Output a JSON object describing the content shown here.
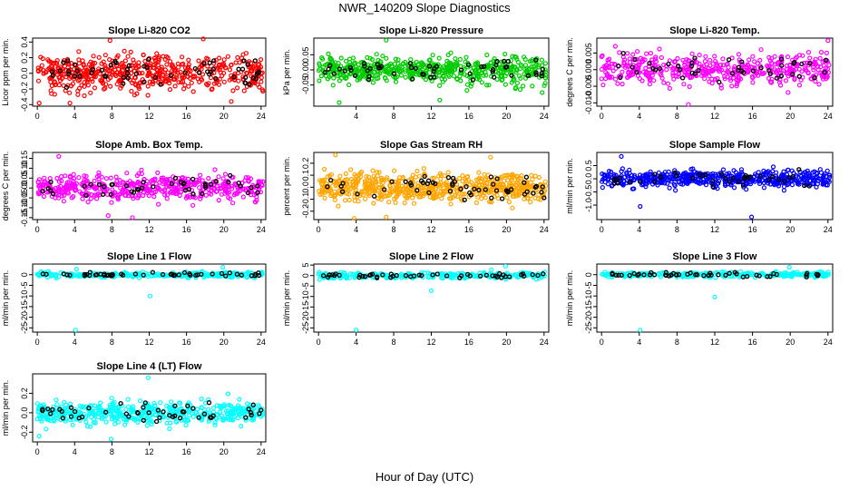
{
  "page": {
    "title": "NWR_140209  Slope Diagnostics",
    "xlabel": "Hour of Day (UTC)"
  },
  "colors": {
    "highlight": "#000000"
  },
  "chart_data": [
    {
      "type": "scatter",
      "title": "Slope Li-820 CO2",
      "ylabel": "Licor ppm per min.",
      "color": "#ff0000",
      "xlim": [
        -0.5,
        24.5
      ],
      "ylim": [
        -0.42,
        0.45
      ],
      "xticks": [
        0,
        4,
        8,
        12,
        16,
        20,
        24
      ],
      "xtick_labels": [
        "0",
        "4",
        "8",
        "12",
        "16",
        "20",
        "24"
      ],
      "yticks": [
        -0.4,
        -0.2,
        0.0,
        0.2,
        0.4
      ],
      "ytick_labels": [
        "-0.4",
        "-0.2",
        "0.0",
        "0.2",
        "0.4"
      ],
      "spread": 0.16,
      "cap": 0.38,
      "count": 520,
      "highlight_count": 60,
      "outliers": [
        [
          7.8,
          0.42
        ],
        [
          17.8,
          0.44
        ],
        [
          3.5,
          -0.38
        ],
        [
          20.8,
          -0.36
        ],
        [
          0.2,
          -0.38
        ]
      ]
    },
    {
      "type": "scatter",
      "title": "Slope Li-820 Pressure",
      "ylabel": "kPa per min.",
      "color": "#00cc00",
      "xlim": [
        -0.5,
        24.5
      ],
      "ylim": [
        -0.12,
        0.105
      ],
      "xticks": [
        4,
        8,
        12,
        16,
        20,
        24
      ],
      "xtick_labels": [
        "4",
        "8",
        "12",
        "16",
        "20",
        "24"
      ],
      "yticks": [
        -0.05,
        0.0,
        0.05
      ],
      "ytick_labels": [
        "-0.05",
        "0.00",
        "0.05"
      ],
      "spread": 0.03,
      "cap": 0.08,
      "count": 560,
      "highlight_count": 55,
      "outliers": [
        [
          7.2,
          0.098
        ],
        [
          2.2,
          -0.108
        ],
        [
          12.9,
          -0.1
        ],
        [
          23.8,
          -0.075
        ]
      ]
    },
    {
      "type": "scatter",
      "title": "Slope Li-820 Temp.",
      "ylabel": "degrees C per min.",
      "color": "#ff00ff",
      "xlim": [
        -0.5,
        24.5
      ],
      "ylim": [
        -0.011,
        0.0095
      ],
      "xticks": [
        0,
        4,
        8,
        12,
        16,
        20,
        24
      ],
      "xtick_labels": [
        "0",
        "4",
        "8",
        "12",
        "16",
        "20",
        "24"
      ],
      "yticks": [
        -0.01,
        -0.005,
        0.0,
        0.005
      ],
      "ytick_labels": [
        "-0.010",
        "-0.005",
        "0.000",
        "0.005"
      ],
      "spread": 0.0032,
      "cap": 0.0085,
      "count": 460,
      "highlight_count": 45,
      "outliers": [
        [
          24,
          0.0088
        ],
        [
          9.2,
          -0.0105
        ]
      ]
    },
    {
      "type": "scatter",
      "title": "Slope Amb. Box Temp.",
      "ylabel": "degrees C per min.",
      "color": "#ff00ff",
      "xlim": [
        -0.5,
        24.5
      ],
      "ylim": [
        -0.16,
        0.18
      ],
      "xticks": [
        0,
        4,
        8,
        12,
        16,
        20,
        24
      ],
      "xtick_labels": [
        "0",
        "4",
        "8",
        "12",
        "16",
        "20",
        "24"
      ],
      "yticks": [
        -0.15,
        -0.1,
        -0.05,
        0.0,
        0.05,
        0.1,
        0.15
      ],
      "ytick_labels": [
        "-0.15",
        "-0.10",
        "-0.05",
        "0.00",
        "0.05",
        "0.10",
        "0.15"
      ],
      "spread": 0.045,
      "cap": 0.15,
      "count": 480,
      "highlight_count": 45,
      "outliers": [
        [
          2.3,
          0.16
        ],
        [
          10.2,
          -0.15
        ],
        [
          7.6,
          -0.14
        ]
      ]
    },
    {
      "type": "scatter",
      "title": "Slope Gas Stream RH",
      "ylabel": "percent per min.",
      "color": "#ffa500",
      "xlim": [
        -0.5,
        24.5
      ],
      "ylim": [
        -0.27,
        0.29
      ],
      "xticks": [
        0,
        4,
        8,
        12,
        16,
        20,
        24
      ],
      "xtick_labels": [
        "0",
        "4",
        "8",
        "12",
        "16",
        "20",
        "24"
      ],
      "yticks": [
        -0.2,
        -0.1,
        0.0,
        0.1,
        0.2
      ],
      "ytick_labels": [
        "-0.2",
        "-0.1",
        "0.0",
        "0.1",
        "0.2"
      ],
      "spread": 0.08,
      "cap": 0.25,
      "count": 620,
      "highlight_count": 55,
      "outliers": [
        [
          1.8,
          0.27
        ],
        [
          7.2,
          -0.25
        ],
        [
          18.3,
          0.25
        ],
        [
          3.8,
          -0.26
        ]
      ]
    },
    {
      "type": "scatter",
      "title": "Slope Sample Flow",
      "ylabel": "ml/min per min.",
      "color": "#0000ff",
      "xlim": [
        -0.5,
        24.5
      ],
      "ylim": [
        -1.55,
        1.0
      ],
      "xticks": [
        0,
        4,
        8,
        12,
        16,
        20,
        24
      ],
      "xtick_labels": [
        "0",
        "4",
        "8",
        "12",
        "16",
        "20",
        "24"
      ],
      "yticks": [
        -1.0,
        -0.5,
        0.0,
        0.5
      ],
      "ytick_labels": [
        "-1.0",
        "-0.5",
        "0.0",
        "0.5"
      ],
      "spread": 0.22,
      "cap": 0.75,
      "count": 520,
      "highlight_count": 40,
      "outliers": [
        [
          15.9,
          -1.45
        ],
        [
          4.1,
          -1.05
        ],
        [
          2.1,
          0.85
        ]
      ]
    },
    {
      "type": "scatter",
      "title": "Slope Line 1 Flow",
      "ylabel": "ml/min per min.",
      "color": "#00ffff",
      "xlim": [
        -0.5,
        24.5
      ],
      "ylim": [
        -27,
        5
      ],
      "xticks": [
        0,
        4,
        8,
        12,
        16,
        20,
        24
      ],
      "xtick_labels": [
        "0",
        "4",
        "8",
        "12",
        "16",
        "20",
        "24"
      ],
      "yticks": [
        -25,
        -20,
        -15,
        -10,
        -5,
        0
      ],
      "ytick_labels": [
        "-25",
        "-20",
        "-15",
        "-10",
        "-5",
        "0"
      ],
      "spread": 0.8,
      "cap": 2.5,
      "count": 300,
      "highlight_count": 50,
      "outliers": [
        [
          4.1,
          -26
        ],
        [
          12.1,
          -10
        ],
        [
          19.9,
          3.5
        ],
        [
          4.2,
          2.6
        ]
      ]
    },
    {
      "type": "scatter",
      "title": "Slope Line 2 Flow",
      "ylabel": "ml/min per min.",
      "color": "#00ffff",
      "xlim": [
        -0.5,
        24.5
      ],
      "ylim": [
        -27,
        5.5
      ],
      "xticks": [
        0,
        4,
        8,
        12,
        16,
        20,
        24
      ],
      "xtick_labels": [
        "0",
        "4",
        "8",
        "12",
        "16",
        "20",
        "24"
      ],
      "yticks": [
        -25,
        -20,
        -15,
        -10,
        -5,
        0,
        5
      ],
      "ytick_labels": [
        "-25",
        "-20",
        "-15",
        "-10",
        "-5",
        "0",
        "5"
      ],
      "spread": 0.9,
      "cap": 3.5,
      "count": 300,
      "highlight_count": 50,
      "outliers": [
        [
          4.0,
          -26
        ],
        [
          12.0,
          -7.2
        ],
        [
          19.9,
          4.5
        ],
        [
          18.4,
          2.8
        ]
      ]
    },
    {
      "type": "scatter",
      "title": "Slope Line 3 Flow",
      "ylabel": "ml/min per min.",
      "color": "#00ffff",
      "xlim": [
        -0.5,
        24.5
      ],
      "ylim": [
        -27,
        5
      ],
      "xticks": [
        0,
        4,
        8,
        12,
        16,
        20,
        24
      ],
      "xtick_labels": [
        "0",
        "4",
        "8",
        "12",
        "16",
        "20",
        "24"
      ],
      "yticks": [
        -25,
        -20,
        -15,
        -10,
        -5,
        0
      ],
      "ytick_labels": [
        "-25",
        "-20",
        "-15",
        "-10",
        "-5",
        "0"
      ],
      "spread": 0.8,
      "cap": 2.5,
      "count": 300,
      "highlight_count": 50,
      "outliers": [
        [
          4.1,
          -26
        ],
        [
          12.0,
          -10.5
        ],
        [
          19.9,
          3.5
        ]
      ]
    },
    {
      "type": "scatter",
      "title": "Slope Line 4 (LT) Flow",
      "ylabel": "ml/min per min.",
      "color": "#00ffff",
      "xlim": [
        -0.5,
        24.5
      ],
      "ylim": [
        -0.3,
        0.4
      ],
      "xticks": [
        0,
        4,
        8,
        12,
        16,
        20,
        24
      ],
      "xtick_labels": [
        "0",
        "4",
        "8",
        "12",
        "16",
        "20",
        "24"
      ],
      "yticks": [
        -0.2,
        0.0,
        0.2
      ],
      "ytick_labels": [
        "-0.2",
        "0.0",
        "0.2"
      ],
      "spread": 0.08,
      "cap": 0.26,
      "count": 500,
      "highlight_count": 50,
      "outliers": [
        [
          11.9,
          0.36
        ],
        [
          7.9,
          -0.27
        ],
        [
          0.2,
          -0.24
        ]
      ]
    }
  ]
}
